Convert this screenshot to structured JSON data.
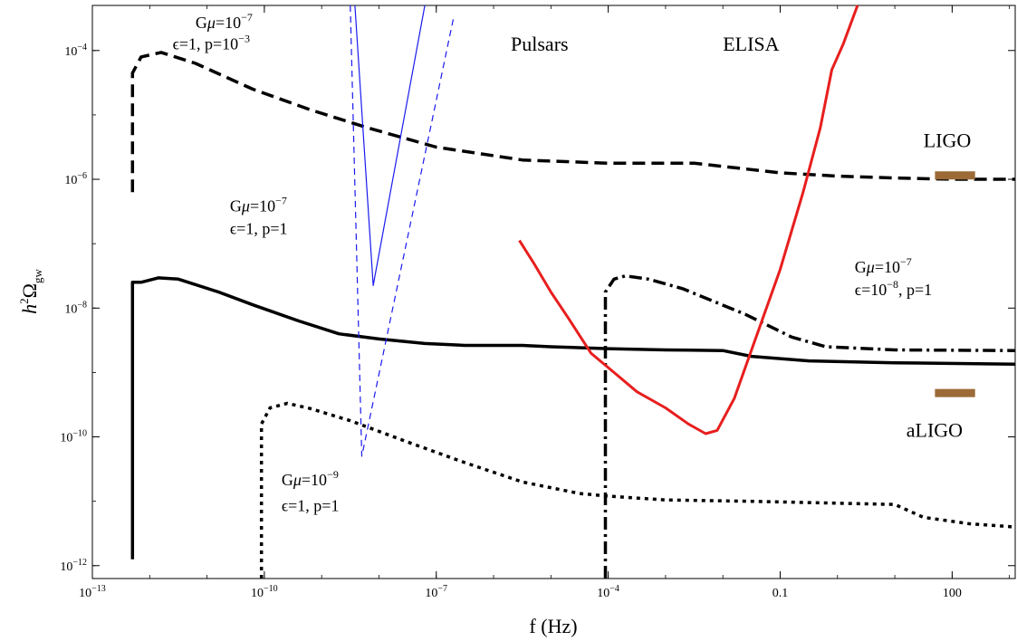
{
  "chart_data": {
    "type": "line",
    "xlabel": "f (Hz)",
    "ylabel": {
      "base": "h",
      "sup": "2",
      "main": "Ω",
      "sub": "gw"
    },
    "x_scale": "log",
    "y_scale": "log",
    "xlim_log10": [
      -13,
      3.1
    ],
    "ylim_log10": [
      -12.2,
      -3.3
    ],
    "xticks": [
      {
        "base": "10",
        "exp": "−13",
        "log10": -13
      },
      {
        "base": "10",
        "exp": "−10",
        "log10": -10
      },
      {
        "base": "10",
        "exp": "−7",
        "log10": -7
      },
      {
        "base": "10",
        "exp": "−4",
        "log10": -4
      },
      {
        "text": "0.1",
        "log10": -1
      },
      {
        "text": "100",
        "log10": 2
      }
    ],
    "yticks": [
      {
        "base": "10",
        "exp": "−12",
        "log10": -12
      },
      {
        "base": "10",
        "exp": "−10",
        "log10": -10
      },
      {
        "base": "10",
        "exp": "−8",
        "log10": -8
      },
      {
        "base": "10",
        "exp": "−6",
        "log10": -6
      },
      {
        "base": "10",
        "exp": "−4",
        "log10": -4
      }
    ],
    "series": [
      {
        "id": "dashed",
        "color": "#000000",
        "width": 3.5,
        "dash": "14,7",
        "points_log10": [
          [
            -12.3,
            -6.2
          ],
          [
            -12.3,
            -4.35
          ],
          [
            -12.15,
            -4.1
          ],
          [
            -11.8,
            -4.03
          ],
          [
            -11.2,
            -4.2
          ],
          [
            -10.2,
            -4.6
          ],
          [
            -9.2,
            -4.92
          ],
          [
            -8.2,
            -5.2
          ],
          [
            -7,
            -5.5
          ],
          [
            -5.5,
            -5.7
          ],
          [
            -4,
            -5.75
          ],
          [
            -2.5,
            -5.75
          ],
          [
            -2,
            -5.8
          ],
          [
            -1,
            -5.9
          ],
          [
            0,
            -5.95
          ],
          [
            1,
            -5.98
          ],
          [
            2,
            -6.0
          ],
          [
            3.1,
            -6.0
          ]
        ]
      },
      {
        "id": "solid",
        "color": "#000000",
        "width": 3.5,
        "dash": "",
        "points_log10": [
          [
            -12.3,
            -11.9
          ],
          [
            -12.3,
            -7.6
          ],
          [
            -12.15,
            -7.6
          ],
          [
            -11.85,
            -7.53
          ],
          [
            -11.5,
            -7.55
          ],
          [
            -10.8,
            -7.75
          ],
          [
            -10.2,
            -7.95
          ],
          [
            -9.4,
            -8.2
          ],
          [
            -8.7,
            -8.4
          ],
          [
            -8,
            -8.48
          ],
          [
            -7.2,
            -8.55
          ],
          [
            -6.5,
            -8.58
          ],
          [
            -5.5,
            -8.58
          ],
          [
            -5,
            -8.6
          ],
          [
            -4,
            -8.63
          ],
          [
            -3,
            -8.65
          ],
          [
            -2,
            -8.66
          ],
          [
            -1.5,
            -8.75
          ],
          [
            -0.5,
            -8.82
          ],
          [
            1,
            -8.85
          ],
          [
            3.1,
            -8.87
          ]
        ]
      },
      {
        "id": "dotted",
        "color": "#000000",
        "width": 3.5,
        "dash": "4,5",
        "points_log10": [
          [
            -10.05,
            -12.2
          ],
          [
            -10.05,
            -9.8
          ],
          [
            -9.9,
            -9.55
          ],
          [
            -9.6,
            -9.48
          ],
          [
            -9.2,
            -9.56
          ],
          [
            -8.5,
            -9.75
          ],
          [
            -7.5,
            -10.08
          ],
          [
            -6.5,
            -10.4
          ],
          [
            -5.5,
            -10.7
          ],
          [
            -4.5,
            -10.88
          ],
          [
            -4,
            -10.92
          ],
          [
            -3,
            -10.98
          ],
          [
            -1.5,
            -11.0
          ],
          [
            0,
            -11.03
          ],
          [
            1,
            -11.05
          ],
          [
            1.5,
            -11.25
          ],
          [
            2.3,
            -11.35
          ],
          [
            3.1,
            -11.4
          ]
        ]
      },
      {
        "id": "dashdot",
        "color": "#000000",
        "width": 3.5,
        "dash": "14,5,3,5",
        "points_log10": [
          [
            -4.05,
            -12.2
          ],
          [
            -4.05,
            -7.75
          ],
          [
            -3.9,
            -7.55
          ],
          [
            -3.7,
            -7.5
          ],
          [
            -3.3,
            -7.55
          ],
          [
            -2.7,
            -7.7
          ],
          [
            -1.6,
            -8.1
          ],
          [
            -0.8,
            -8.45
          ],
          [
            -0.2,
            -8.6
          ],
          [
            1,
            -8.65
          ],
          [
            3.1,
            -8.66
          ]
        ]
      },
      {
        "id": "elisa",
        "color": "#e81e1e",
        "width": 3,
        "dash": "",
        "points_log10": [
          [
            -5.55,
            -6.95
          ],
          [
            -5.3,
            -7.3
          ],
          [
            -5.0,
            -7.75
          ],
          [
            -4.7,
            -8.15
          ],
          [
            -4.3,
            -8.7
          ],
          [
            -3.9,
            -9.0
          ],
          [
            -3.5,
            -9.3
          ],
          [
            -3.0,
            -9.55
          ],
          [
            -2.6,
            -9.8
          ],
          [
            -2.3,
            -9.95
          ],
          [
            -2.1,
            -9.9
          ],
          [
            -1.8,
            -9.4
          ],
          [
            -1.4,
            -8.4
          ],
          [
            -1.0,
            -7.4
          ],
          [
            -0.6,
            -6.2
          ],
          [
            -0.3,
            -5.2
          ],
          [
            -0.1,
            -4.3
          ],
          [
            0.1,
            -3.9
          ],
          [
            0.35,
            -3.3
          ]
        ]
      },
      {
        "id": "pulsar-solid",
        "color": "#1a1aee",
        "width": 1.2,
        "dash": "",
        "points_log10": [
          [
            -8.42,
            -3.3
          ],
          [
            -8.1,
            -7.65
          ],
          [
            -7.2,
            -3.3
          ]
        ]
      },
      {
        "id": "pulsar-dash",
        "color": "#1a1aee",
        "width": 1.2,
        "dash": "7,5",
        "points_log10": [
          [
            -8.5,
            -3.3
          ],
          [
            -8.3,
            -10.3
          ],
          [
            -6.7,
            -3.5
          ]
        ]
      }
    ],
    "bands": [
      {
        "id": "ligo-band",
        "color": "#9b6a36",
        "x_log10": [
          1.7,
          2.4
        ],
        "y_log10": -5.94
      },
      {
        "id": "aligo-band",
        "color": "#9b6a36",
        "x_log10": [
          1.7,
          2.4
        ],
        "y_log10": -9.32
      }
    ],
    "annotations": [
      {
        "id": "ann-dashed-1",
        "pre": "G",
        "mu": "μ",
        "mid": "=10",
        "sup": "−7",
        "tail": "",
        "color": "#000",
        "x_log10": -11.2,
        "y_log10": -3.65
      },
      {
        "id": "ann-dashed-2",
        "pre": "ϵ=1, p=10",
        "mu": "",
        "mid": "",
        "sup": "−3",
        "tail": "",
        "color": "#000",
        "x_log10": -11.6,
        "y_log10": -3.98
      },
      {
        "id": "ann-solid-1",
        "pre": "G",
        "mu": "μ",
        "mid": "=10",
        "sup": "−7",
        "tail": "",
        "color": "#000",
        "x_log10": -10.6,
        "y_log10": -6.5
      },
      {
        "id": "ann-solid-2",
        "pre": "ϵ=1, p=1",
        "mu": "",
        "mid": "",
        "sup": "",
        "tail": "",
        "color": "#000",
        "x_log10": -10.6,
        "y_log10": -6.85
      },
      {
        "id": "ann-dotted-1",
        "pre": "G",
        "mu": "μ",
        "mid": "=10",
        "sup": "−9",
        "tail": "",
        "color": "#000",
        "x_log10": -9.7,
        "y_log10": -10.75
      },
      {
        "id": "ann-dotted-2",
        "pre": "ϵ=1, p=1",
        "mu": "",
        "mid": "",
        "sup": "",
        "tail": "",
        "color": "#000",
        "x_log10": -9.7,
        "y_log10": -11.15
      },
      {
        "id": "ann-dashdot-1",
        "pre": "G",
        "mu": "μ",
        "mid": "=10",
        "sup": "−7",
        "tail": "",
        "color": "#000",
        "x_log10": 0.3,
        "y_log10": -7.45
      },
      {
        "id": "ann-dashdot-2",
        "pre": "ϵ=10",
        "mu": "",
        "mid": "",
        "sup": "−8",
        "tail": ", p=1",
        "color": "#000",
        "x_log10": 0.3,
        "y_log10": -7.8
      }
    ],
    "labels": [
      {
        "id": "label-pulsars",
        "text": "Pulsars",
        "color": "#1a1aee",
        "x_log10": -5.7,
        "y_log10": -4.0
      },
      {
        "id": "label-elisa",
        "text": "ELISA",
        "color": "#e81e1e",
        "x_log10": -2.0,
        "y_log10": -4.0
      },
      {
        "id": "label-ligo",
        "text": "LIGO",
        "color": "#9b6a36",
        "x_log10": 1.5,
        "y_log10": -5.5
      },
      {
        "id": "label-aligo",
        "text": "aLIGO",
        "color": "#9b6a36",
        "x_log10": 1.2,
        "y_log10": -10.0
      }
    ]
  }
}
